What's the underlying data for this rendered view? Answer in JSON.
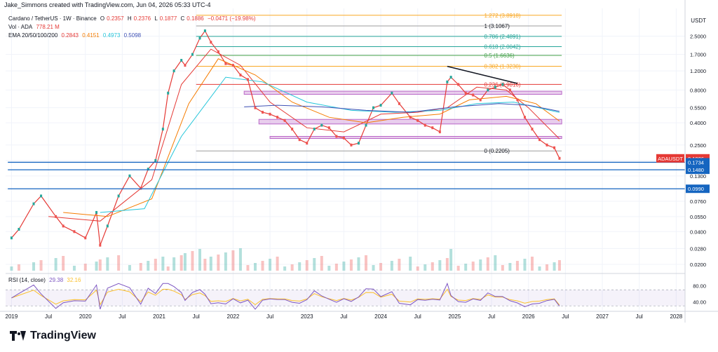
{
  "header": {
    "attribution": "Jake_Simmons created with TradingView.com, Jun 04, 2026 05:33 UTC-4"
  },
  "legend": {
    "symbol": "Cardano / TetherUS · 1W · Binance",
    "ohlc": {
      "o_label": "O",
      "o": "0.2357",
      "h_label": "H",
      "h": "0.2376",
      "l_label": "L",
      "l": "0.1877",
      "c_label": "C",
      "c": "0.1886",
      "change": "−0.0471 (−19.98%)"
    },
    "vol_label": "Vol · ADA",
    "vol_value": "778.21 M",
    "ema_label": "EMA 20/50/100/200",
    "ema_values": [
      "0.2843",
      "0.4151",
      "0.4973",
      "0.5098"
    ],
    "ema_colors": [
      "#e53935",
      "#f57c00",
      "#26c6da",
      "#3f51b5"
    ],
    "rsi_label": "RSI (14, close)",
    "rsi_values": [
      "29.38",
      "32.16"
    ],
    "rsi_colors": [
      "#7e57c2",
      "#fbc02d"
    ]
  },
  "price_axis": {
    "unit": "USDT",
    "ticks": [
      "2.5000",
      "1.7000",
      "1.2000",
      "0.8000",
      "0.5500",
      "0.4000",
      "0.2500",
      "0.1800",
      "0.1300",
      "0.0990",
      "0.0760",
      "0.0550",
      "0.0400",
      "0.0280",
      "0.0200"
    ]
  },
  "rsi_axis": {
    "ticks": [
      "80.00",
      "40.00"
    ]
  },
  "time_axis": {
    "ticks": [
      "2019",
      "Jul",
      "2020",
      "Jul",
      "2021",
      "Jul",
      "2022",
      "Jul",
      "2023",
      "Jul",
      "2024",
      "Jul",
      "2025",
      "Jul",
      "2026",
      "Jul",
      "2027",
      "Jul",
      "2028"
    ]
  },
  "fib_levels": [
    {
      "label": "1.272 (3.8918)",
      "value": 3.8918,
      "color": "#f9a825"
    },
    {
      "label": "1 (3.1067)",
      "value": 3.1067,
      "color": "#9e9e9e"
    },
    {
      "label": "0.786 (2.4891)",
      "value": 2.4891,
      "color": "#26a69a"
    },
    {
      "label": "0.618 (2.0042)",
      "value": 2.0042,
      "color": "#26a69a"
    },
    {
      "label": "0.5 (1.6636)",
      "value": 1.6636,
      "color": "#43a047"
    },
    {
      "label": "0.382 (1.3230)",
      "value": 1.323,
      "color": "#f9a825"
    },
    {
      "label": "0.236 (0.9016)",
      "value": 0.9016,
      "color": "#e53935"
    },
    {
      "label": "0 (0.2205)",
      "value": 0.2205,
      "color": "#9e9e9e"
    }
  ],
  "price_badges": [
    {
      "label": "ADAUSDT",
      "value": "0.1886",
      "sub": "3d 15h",
      "color": "#e53935"
    },
    {
      "value": "0.1734",
      "color": "#1565c0"
    },
    {
      "value": "0.1480",
      "color": "#1565c0"
    },
    {
      "value": "0.0990",
      "color": "#1565c0"
    }
  ],
  "chart_data": {
    "type": "line",
    "title": "Cardano / TetherUS · 1W · Binance",
    "ylabel": "USDT",
    "yscale": "log",
    "ylim": [
      0.0175,
      4.5
    ],
    "series": [
      {
        "name": "ADAUSDT",
        "color": "#e53935",
        "x": [
          2019.0,
          2019.1,
          2019.3,
          2019.4,
          2019.6,
          2019.7,
          2019.85,
          2020.0,
          2020.15,
          2020.2,
          2020.3,
          2020.45,
          2020.6,
          2020.75,
          2020.85,
          2020.95,
          2021.05,
          2021.12,
          2021.2,
          2021.3,
          2021.35,
          2021.45,
          2021.55,
          2021.62,
          2021.7,
          2021.8,
          2021.9,
          2022.0,
          2022.1,
          2022.2,
          2022.3,
          2022.4,
          2022.5,
          2022.6,
          2022.7,
          2022.8,
          2022.9,
          2023.0,
          2023.1,
          2023.2,
          2023.3,
          2023.4,
          2023.5,
          2023.6,
          2023.7,
          2023.8,
          2023.9,
          2024.0,
          2024.15,
          2024.25,
          2024.4,
          2024.5,
          2024.6,
          2024.7,
          2024.8,
          2024.9,
          2024.95,
          2025.05,
          2025.15,
          2025.25,
          2025.35,
          2025.45,
          2025.55,
          2025.65,
          2025.75,
          2025.85,
          2025.95,
          2026.05,
          2026.15,
          2026.25,
          2026.35,
          2026.42
        ],
        "values": [
          0.035,
          0.042,
          0.072,
          0.085,
          0.055,
          0.045,
          0.04,
          0.035,
          0.06,
          0.03,
          0.045,
          0.085,
          0.13,
          0.1,
          0.15,
          0.18,
          0.35,
          0.75,
          1.2,
          1.5,
          1.35,
          1.7,
          2.4,
          2.8,
          2.2,
          1.8,
          1.4,
          1.35,
          1.1,
          1.0,
          0.55,
          0.5,
          0.48,
          0.45,
          0.42,
          0.35,
          0.28,
          0.26,
          0.35,
          0.38,
          0.36,
          0.3,
          0.29,
          0.25,
          0.26,
          0.38,
          0.55,
          0.58,
          0.75,
          0.6,
          0.45,
          0.42,
          0.38,
          0.36,
          0.33,
          0.95,
          1.05,
          0.9,
          0.75,
          0.72,
          0.65,
          0.8,
          0.85,
          0.9,
          0.8,
          0.65,
          0.45,
          0.35,
          0.28,
          0.25,
          0.2357,
          0.1886
        ]
      },
      {
        "name": "EMA 20",
        "color": "#e53935",
        "x": [
          2019.5,
          2020.2,
          2020.9,
          2021.3,
          2021.7,
          2022.1,
          2022.5,
          2023.0,
          2023.5,
          2024.0,
          2024.5,
          2024.9,
          2025.3,
          2025.7,
          2026.0,
          2026.42
        ],
        "values": [
          0.055,
          0.05,
          0.12,
          0.9,
          1.9,
          1.35,
          0.62,
          0.36,
          0.33,
          0.48,
          0.5,
          0.55,
          0.85,
          0.8,
          0.55,
          0.2843
        ]
      },
      {
        "name": "EMA 50",
        "color": "#f57c00",
        "x": [
          2019.7,
          2020.3,
          2020.9,
          2021.4,
          2021.8,
          2022.3,
          2022.8,
          2023.3,
          2023.8,
          2024.3,
          2024.8,
          2025.2,
          2025.7,
          2026.1,
          2026.42
        ],
        "values": [
          0.06,
          0.055,
          0.08,
          0.6,
          1.55,
          1.1,
          0.62,
          0.45,
          0.4,
          0.45,
          0.48,
          0.65,
          0.7,
          0.6,
          0.4151
        ]
      },
      {
        "name": "EMA 100",
        "color": "#26c6da",
        "x": [
          2020.2,
          2020.8,
          2021.3,
          2021.9,
          2022.4,
          2023.0,
          2023.6,
          2024.2,
          2024.8,
          2025.3,
          2025.8,
          2026.42
        ],
        "values": [
          0.06,
          0.065,
          0.3,
          1.05,
          0.95,
          0.62,
          0.52,
          0.5,
          0.52,
          0.6,
          0.62,
          0.4973
        ]
      },
      {
        "name": "EMA 200",
        "color": "#3f51b5",
        "x": [
          2022.15,
          2022.6,
          2023.2,
          2023.8,
          2024.4,
          2025.0,
          2025.6,
          2026.0,
          2026.42
        ],
        "values": [
          0.56,
          0.58,
          0.56,
          0.52,
          0.5,
          0.56,
          0.6,
          0.58,
          0.5098
        ]
      }
    ],
    "zones": [
      {
        "from": 0.73,
        "to": 0.78,
        "x0": 2022.15,
        "x1": 2026.45
      },
      {
        "from": 0.39,
        "to": 0.43,
        "x0": 2022.35,
        "x1": 2026.45
      },
      {
        "from": 0.29,
        "to": 0.3,
        "x0": 2022.5,
        "x1": 2026.45
      }
    ],
    "trendline": {
      "x": [
        2024.9,
        2025.85
      ],
      "values": [
        1.32,
        0.92
      ]
    },
    "support_lines": [
      0.1734,
      0.148,
      0.099
    ],
    "volume": {
      "label": "Vol · ADA",
      "last": "778.21 M"
    },
    "rsi": {
      "label": "RSI (14, close)",
      "rsi": 29.38,
      "ma": 32.16,
      "levels": [
        70,
        30
      ]
    }
  }
}
